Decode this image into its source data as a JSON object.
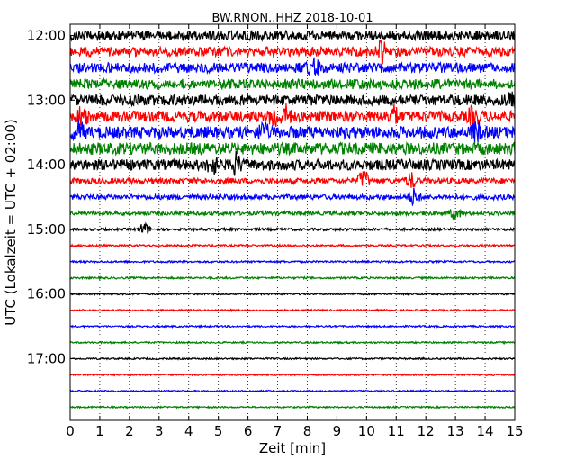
{
  "chart_data": {
    "type": "line",
    "title": "BW.RNON..HHZ 2018-10-01",
    "xlabel": "Zeit  [min]",
    "ylabel": "UTC (Lokalzeit = UTC + 02:00)",
    "xlim": [
      0,
      15
    ],
    "x_ticks": [
      "0",
      "1",
      "2",
      "3",
      "4",
      "5",
      "6",
      "7",
      "8",
      "9",
      "10",
      "11",
      "12",
      "13",
      "14",
      "15"
    ],
    "y_ticks": [
      {
        "label": "12:00",
        "row": 0
      },
      {
        "label": "13:00",
        "row": 4
      },
      {
        "label": "14:00",
        "row": 8
      },
      {
        "label": "15:00",
        "row": 12
      },
      {
        "label": "16:00",
        "row": 16
      },
      {
        "label": "17:00",
        "row": 20
      }
    ],
    "grid_x": "dotted",
    "trace_minutes": 15,
    "trace_colors": [
      "#000000",
      "#ff0000",
      "#0000ff",
      "#008000"
    ],
    "traces": [
      {
        "start": "12:00",
        "amplitude": 0.75
      },
      {
        "start": "12:15",
        "amplitude": 0.75,
        "events": [
          [
            10.5,
            1.6
          ]
        ]
      },
      {
        "start": "12:30",
        "amplitude": 0.8,
        "events": [
          [
            8.2,
            1.6
          ]
        ]
      },
      {
        "start": "12:45",
        "amplitude": 0.8
      },
      {
        "start": "13:00",
        "amplitude": 0.85,
        "events": [
          [
            14.9,
            1.0
          ]
        ]
      },
      {
        "start": "13:15",
        "amplitude": 0.85,
        "events": [
          [
            0.4,
            1.6
          ],
          [
            6.9,
            1.6
          ],
          [
            7.3,
            1.4
          ],
          [
            10.9,
            1.4
          ],
          [
            13.6,
            1.3
          ]
        ]
      },
      {
        "start": "13:30",
        "amplitude": 0.95,
        "events": [
          [
            0.3,
            1.3
          ],
          [
            6.5,
            1.2
          ],
          [
            13.7,
            1.3
          ]
        ]
      },
      {
        "start": "13:45",
        "amplitude": 0.95
      },
      {
        "start": "14:00",
        "amplitude": 0.85,
        "events": [
          [
            4.8,
            1.3
          ],
          [
            5.6,
            1.4
          ]
        ]
      },
      {
        "start": "14:15",
        "amplitude": 0.45,
        "events": [
          [
            9.9,
            1.7
          ],
          [
            11.5,
            1.2
          ]
        ]
      },
      {
        "start": "14:30",
        "amplitude": 0.4,
        "events": [
          [
            11.6,
            1.3
          ]
        ]
      },
      {
        "start": "14:45",
        "amplitude": 0.3,
        "events": [
          [
            13.0,
            1.0
          ]
        ]
      },
      {
        "start": "15:00",
        "amplitude": 0.2,
        "events": [
          [
            2.5,
            1.1
          ]
        ]
      },
      {
        "start": "15:15",
        "amplitude": 0.15
      },
      {
        "start": "15:30",
        "amplitude": 0.15
      },
      {
        "start": "15:45",
        "amplitude": 0.15
      },
      {
        "start": "16:00",
        "amplitude": 0.13
      },
      {
        "start": "16:15",
        "amplitude": 0.13
      },
      {
        "start": "16:30",
        "amplitude": 0.13
      },
      {
        "start": "16:45",
        "amplitude": 0.13
      },
      {
        "start": "17:00",
        "amplitude": 0.13
      },
      {
        "start": "17:15",
        "amplitude": 0.12
      },
      {
        "start": "17:30",
        "amplitude": 0.12
      },
      {
        "start": "17:45",
        "amplitude": 0.12
      }
    ]
  }
}
